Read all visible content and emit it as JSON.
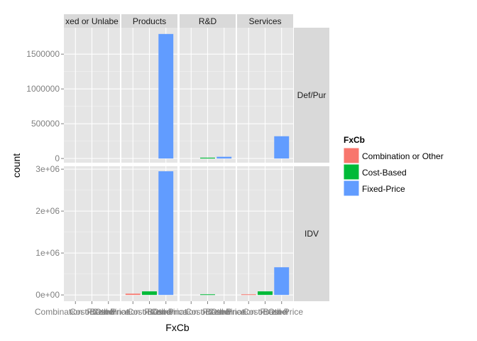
{
  "chart_data": {
    "type": "bar",
    "xlabel": "FxCb",
    "ylabel": "count",
    "categories": [
      "Combination or Other",
      "Cost-Based",
      "Fixed-Price"
    ],
    "colors": [
      "#f8766d",
      "#00ba38",
      "#619cff"
    ],
    "legend": {
      "title": "FxCb",
      "placement": "right",
      "items": [
        "Combination or Other",
        "Cost-Based",
        "Fixed-Price"
      ]
    },
    "column_facets": [
      "Mixed or Unlabeled",
      "Products",
      "R&D",
      "Services"
    ],
    "column_facets_shown": [
      "xed or Unlabe",
      "Products",
      "R&D",
      "Services"
    ],
    "row_facets": [
      "Def/Pur",
      "IDV"
    ],
    "rows": [
      {
        "facet": "Def/Pur",
        "ylim": [
          -60000,
          1880000
        ],
        "yticks": [
          0,
          500000,
          1000000,
          1500000
        ],
        "ytick_labels": [
          "0",
          "500000",
          "1000000",
          "1500000"
        ],
        "panels": [
          {
            "column": "Mixed or Unlabeled",
            "values": [
              0,
              0,
              0
            ]
          },
          {
            "column": "Products",
            "values": [
              0,
              0,
              1790000
            ]
          },
          {
            "column": "R&D",
            "values": [
              0,
              12000,
              25000
            ]
          },
          {
            "column": "Services",
            "values": [
              0,
              0,
              320000
            ]
          }
        ]
      },
      {
        "facet": "IDV",
        "ylim": [
          -150000,
          3070000
        ],
        "yticks": [
          0,
          1000000,
          2000000,
          3000000
        ],
        "ytick_labels": [
          "0e+00",
          "1e+06",
          "2e+06",
          "3e+06"
        ],
        "panels": [
          {
            "column": "Mixed or Unlabeled",
            "values": [
              0,
              0,
              0
            ]
          },
          {
            "column": "Products",
            "values": [
              30000,
              85000,
              2950000
            ]
          },
          {
            "column": "R&D",
            "values": [
              0,
              15000,
              0
            ]
          },
          {
            "column": "Services",
            "values": [
              15000,
              85000,
              660000
            ]
          }
        ]
      }
    ],
    "grid": true
  }
}
